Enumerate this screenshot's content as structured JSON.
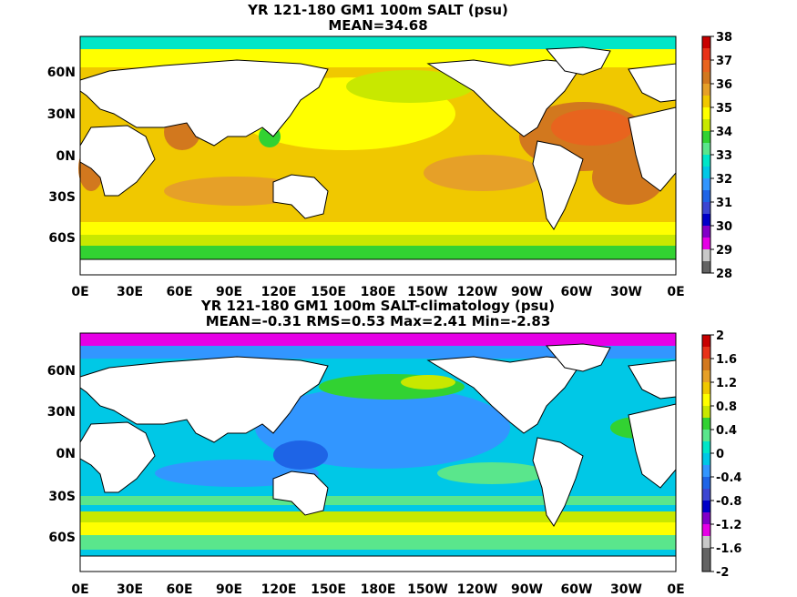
{
  "panels": [
    {
      "title_line1": "YR 121-180 GM1 100m SALT (psu)",
      "title_line2": "MEAN=34.68",
      "colorbar_ticks": [
        "38",
        "37",
        "36",
        "35",
        "34",
        "33",
        "32",
        "31",
        "30",
        "29",
        "28"
      ],
      "colorbar_colors": [
        "#c80000",
        "#e83218",
        "#e8641e",
        "#d2781e",
        "#e6a028",
        "#f0c800",
        "#ffff00",
        "#c8e800",
        "#32d232",
        "#5ae68c",
        "#00e6c8",
        "#00c8e6",
        "#3296ff",
        "#1e64e6",
        "#3c46d2",
        "#0000c8",
        "#8200c8",
        "#e600e6",
        "#c8c8c8",
        "#646464"
      ],
      "lat_labels": [
        "60N",
        "30N",
        "0N",
        "30S",
        "60S"
      ],
      "lon_labels": [
        "0E",
        "30E",
        "60E",
        "90E",
        "120E",
        "150E",
        "180E",
        "150W",
        "120W",
        "90W",
        "60W",
        "30W",
        "0E"
      ],
      "ocean_base_color": "#f0c800"
    },
    {
      "title_line1": "YR 121-180 GM1 100m SALT-climatology (psu)",
      "title_line2": "MEAN=-0.31   RMS=0.53   Max=2.41   Min=-2.83",
      "colorbar_ticks": [
        "2",
        "1.6",
        "1.2",
        "0.8",
        "0.4",
        "0",
        "-0.4",
        "-0.8",
        "-1.2",
        "-1.6",
        "-2"
      ],
      "colorbar_colors": [
        "#c80000",
        "#e83218",
        "#d2781e",
        "#e6a028",
        "#f0c800",
        "#ffff00",
        "#c8e800",
        "#32d232",
        "#5ae68c",
        "#00e6c8",
        "#00c8e6",
        "#3296ff",
        "#1e64e6",
        "#3c46d2",
        "#0000c8",
        "#8200c8",
        "#e600e6",
        "#c8c8c8",
        "#646464",
        "#646464"
      ],
      "lat_labels": [
        "60N",
        "30N",
        "0N",
        "30S",
        "60S"
      ],
      "lon_labels": [
        "0E",
        "30E",
        "60E",
        "90E",
        "120E",
        "150E",
        "180E",
        "150W",
        "120W",
        "90W",
        "60W",
        "30W",
        "0E"
      ],
      "ocean_base_color": "#00c8e6"
    }
  ]
}
